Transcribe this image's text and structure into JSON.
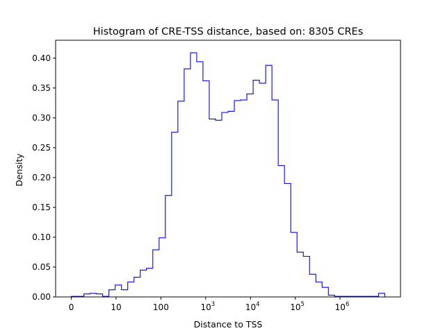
{
  "chart_data": {
    "type": "histogram",
    "title": "Histogram of CRE-TSS distance, based on: 8305 CREs",
    "xlabel": "Distance to TSS",
    "ylabel": "Density",
    "x_scale": "symlog",
    "xlim": [
      -0.35,
      7.35
    ],
    "ylim": [
      0,
      0.43
    ],
    "grid": false,
    "legend": "none",
    "line_color": "#0000ff",
    "x_ticks": [
      {
        "value": 0,
        "label": "0"
      },
      {
        "value": 1,
        "label": "10"
      },
      {
        "value": 2,
        "label": "100"
      },
      {
        "value": 3,
        "base": "10",
        "exp": "3"
      },
      {
        "value": 4,
        "base": "10",
        "exp": "4"
      },
      {
        "value": 5,
        "base": "10",
        "exp": "5"
      },
      {
        "value": 6,
        "base": "10",
        "exp": "6"
      }
    ],
    "y_ticks": [
      {
        "value": 0.0,
        "label": "0.00"
      },
      {
        "value": 0.05,
        "label": "0.05"
      },
      {
        "value": 0.1,
        "label": "0.10"
      },
      {
        "value": 0.15,
        "label": "0.15"
      },
      {
        "value": 0.2,
        "label": "0.20"
      },
      {
        "value": 0.25,
        "label": "0.25"
      },
      {
        "value": 0.3,
        "label": "0.30"
      },
      {
        "value": 0.35,
        "label": "0.35"
      },
      {
        "value": 0.4,
        "label": "0.40"
      }
    ],
    "bin_edges": [
      0,
      0.14,
      0.28,
      0.42,
      0.56,
      0.7,
      0.84,
      0.98,
      1.12,
      1.26,
      1.4,
      1.54,
      1.68,
      1.82,
      1.96,
      2.1,
      2.24,
      2.38,
      2.52,
      2.66,
      2.8,
      2.94,
      3.08,
      3.22,
      3.36,
      3.5,
      3.64,
      3.78,
      3.92,
      4.06,
      4.2,
      4.34,
      4.48,
      4.62,
      4.76,
      4.9,
      5.04,
      5.18,
      5.32,
      5.46,
      5.6,
      5.74,
      5.88,
      6.02,
      6.16,
      6.3,
      6.44,
      6.58,
      6.72,
      6.86,
      7.0
    ],
    "values": [
      0.001,
      0.001,
      0.005,
      0.006,
      0.005,
      0.001,
      0.012,
      0.02,
      0.012,
      0.025,
      0.033,
      0.045,
      0.048,
      0.079,
      0.099,
      0.17,
      0.276,
      0.328,
      0.382,
      0.409,
      0.394,
      0.362,
      0.298,
      0.296,
      0.309,
      0.311,
      0.329,
      0.33,
      0.34,
      0.363,
      0.358,
      0.388,
      0.33,
      0.22,
      0.19,
      0.108,
      0.075,
      0.068,
      0.038,
      0.025,
      0.016,
      0.003,
      0.001,
      0.001,
      0.001,
      0.001,
      0.001,
      0.001,
      0.001,
      0.006
    ]
  }
}
